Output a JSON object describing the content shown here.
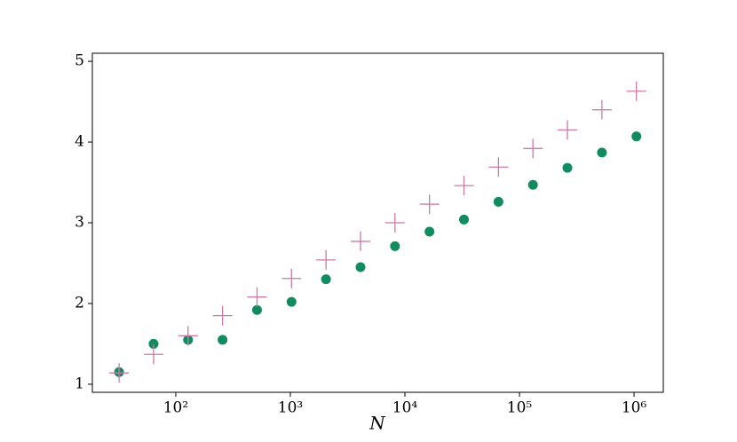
{
  "chart_data": {
    "type": "scatter",
    "xlabel": "N",
    "xscale": "log",
    "x": [
      32,
      64,
      128,
      256,
      512,
      1024,
      2048,
      4096,
      8192,
      16384,
      32768,
      65536,
      131072,
      262144,
      524288,
      1048576
    ],
    "series": [
      {
        "color": "#118c5e",
        "marker": "circle",
        "values": [
          1.15,
          1.5,
          1.55,
          1.55,
          1.92,
          2.02,
          2.3,
          2.45,
          2.71,
          2.89,
          3.04,
          3.26,
          3.47,
          3.68,
          3.87,
          4.07
        ]
      },
      {
        "color": "#cc79a7",
        "marker": "plus",
        "values": [
          1.14,
          1.37,
          1.6,
          1.85,
          2.08,
          2.31,
          2.54,
          2.77,
          3.0,
          3.23,
          3.46,
          3.69,
          3.92,
          4.15,
          4.4,
          4.63
        ]
      }
    ],
    "xlim": [
      18.7,
      1800000
    ],
    "xticks": [
      {
        "value": 100,
        "label": "10²"
      },
      {
        "value": 1000,
        "label": "10³"
      },
      {
        "value": 10000,
        "label": "10⁴"
      },
      {
        "value": 100000,
        "label": "10⁵"
      },
      {
        "value": 1000000,
        "label": "10⁶"
      }
    ],
    "ylim": [
      0.9,
      5.1
    ],
    "yticks": [
      1,
      2,
      3,
      4,
      5
    ],
    "grid": false
  }
}
